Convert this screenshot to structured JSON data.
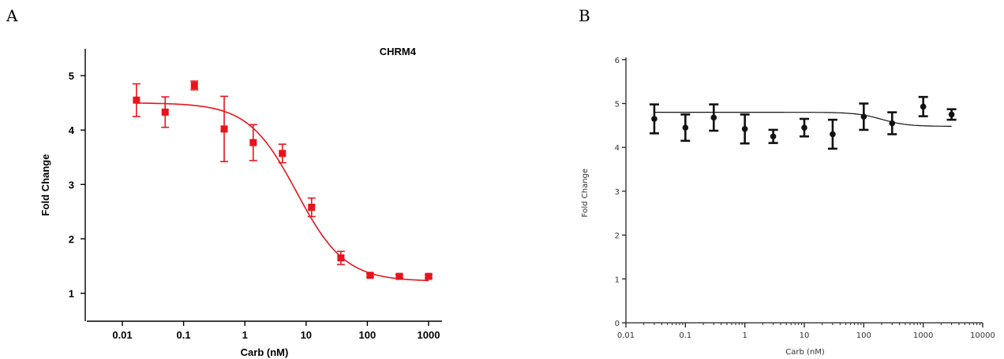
{
  "panels": {
    "a_label": "A",
    "b_label": "B"
  },
  "chart_data": [
    {
      "type": "scatter",
      "title": "CHRM4",
      "xlabel": "Carb (nM)",
      "ylabel": "Fold Change",
      "x_scale": "log",
      "xlim": [
        0.004,
        2500
      ],
      "ylim": [
        0.5,
        5.5
      ],
      "x_ticks": [
        0.01,
        0.1,
        1,
        10,
        100,
        1000
      ],
      "x_tick_labels": [
        "0.01",
        "0.1",
        "1",
        "10",
        "100",
        "1000"
      ],
      "y_ticks": [
        1,
        2,
        3,
        4,
        5
      ],
      "y_tick_labels": [
        "1",
        "2",
        "3",
        "4",
        "5"
      ],
      "color": "#e8141c",
      "marker": "square",
      "series": [
        {
          "x": [
            0.017,
            0.05,
            0.15,
            0.46,
            1.37,
            4.1,
            12.3,
            37,
            111,
            333,
            1000
          ],
          "y": [
            4.55,
            4.33,
            4.82,
            4.02,
            3.77,
            3.57,
            2.58,
            1.65,
            1.33,
            1.31,
            1.31
          ],
          "error": [
            0.3,
            0.28,
            0.08,
            0.6,
            0.33,
            0.17,
            0.17,
            0.12,
            0.03,
            0.03,
            0.03
          ]
        }
      ],
      "fit": {
        "type": "sigmoid",
        "top": 4.5,
        "bottom": 1.22,
        "ec50": 7,
        "hill": 1.1
      },
      "grid": false
    },
    {
      "type": "scatter",
      "xlabel": "Carb (nM)",
      "ylabel": "Fold Change",
      "x_scale": "log",
      "xlim": [
        0.01,
        10000
      ],
      "ylim": [
        0,
        6
      ],
      "x_ticks": [
        0.01,
        0.1,
        1,
        10,
        100,
        1000,
        10000
      ],
      "x_tick_labels": [
        "0.01",
        "0.1",
        "1",
        "10",
        "100",
        "1000",
        "10000"
      ],
      "y_ticks": [
        0,
        1,
        2,
        3,
        4,
        5,
        6
      ],
      "y_tick_labels": [
        "0",
        "1",
        "2",
        "3",
        "4",
        "5",
        "6"
      ],
      "color": "#111111",
      "marker": "circle",
      "series": [
        {
          "x": [
            0.03,
            0.1,
            0.3,
            1,
            3,
            10,
            30,
            100,
            300,
            1000,
            3000
          ],
          "y": [
            4.65,
            4.45,
            4.68,
            4.42,
            4.25,
            4.45,
            4.3,
            4.7,
            4.55,
            4.93,
            4.75
          ],
          "error": [
            0.33,
            0.3,
            0.3,
            0.33,
            0.15,
            0.2,
            0.33,
            0.3,
            0.25,
            0.22,
            0.12
          ]
        }
      ],
      "fit": {
        "type": "sigmoid",
        "top": 4.8,
        "bottom": 4.48,
        "ec50": 200,
        "hill": 2
      },
      "grid": false
    }
  ]
}
